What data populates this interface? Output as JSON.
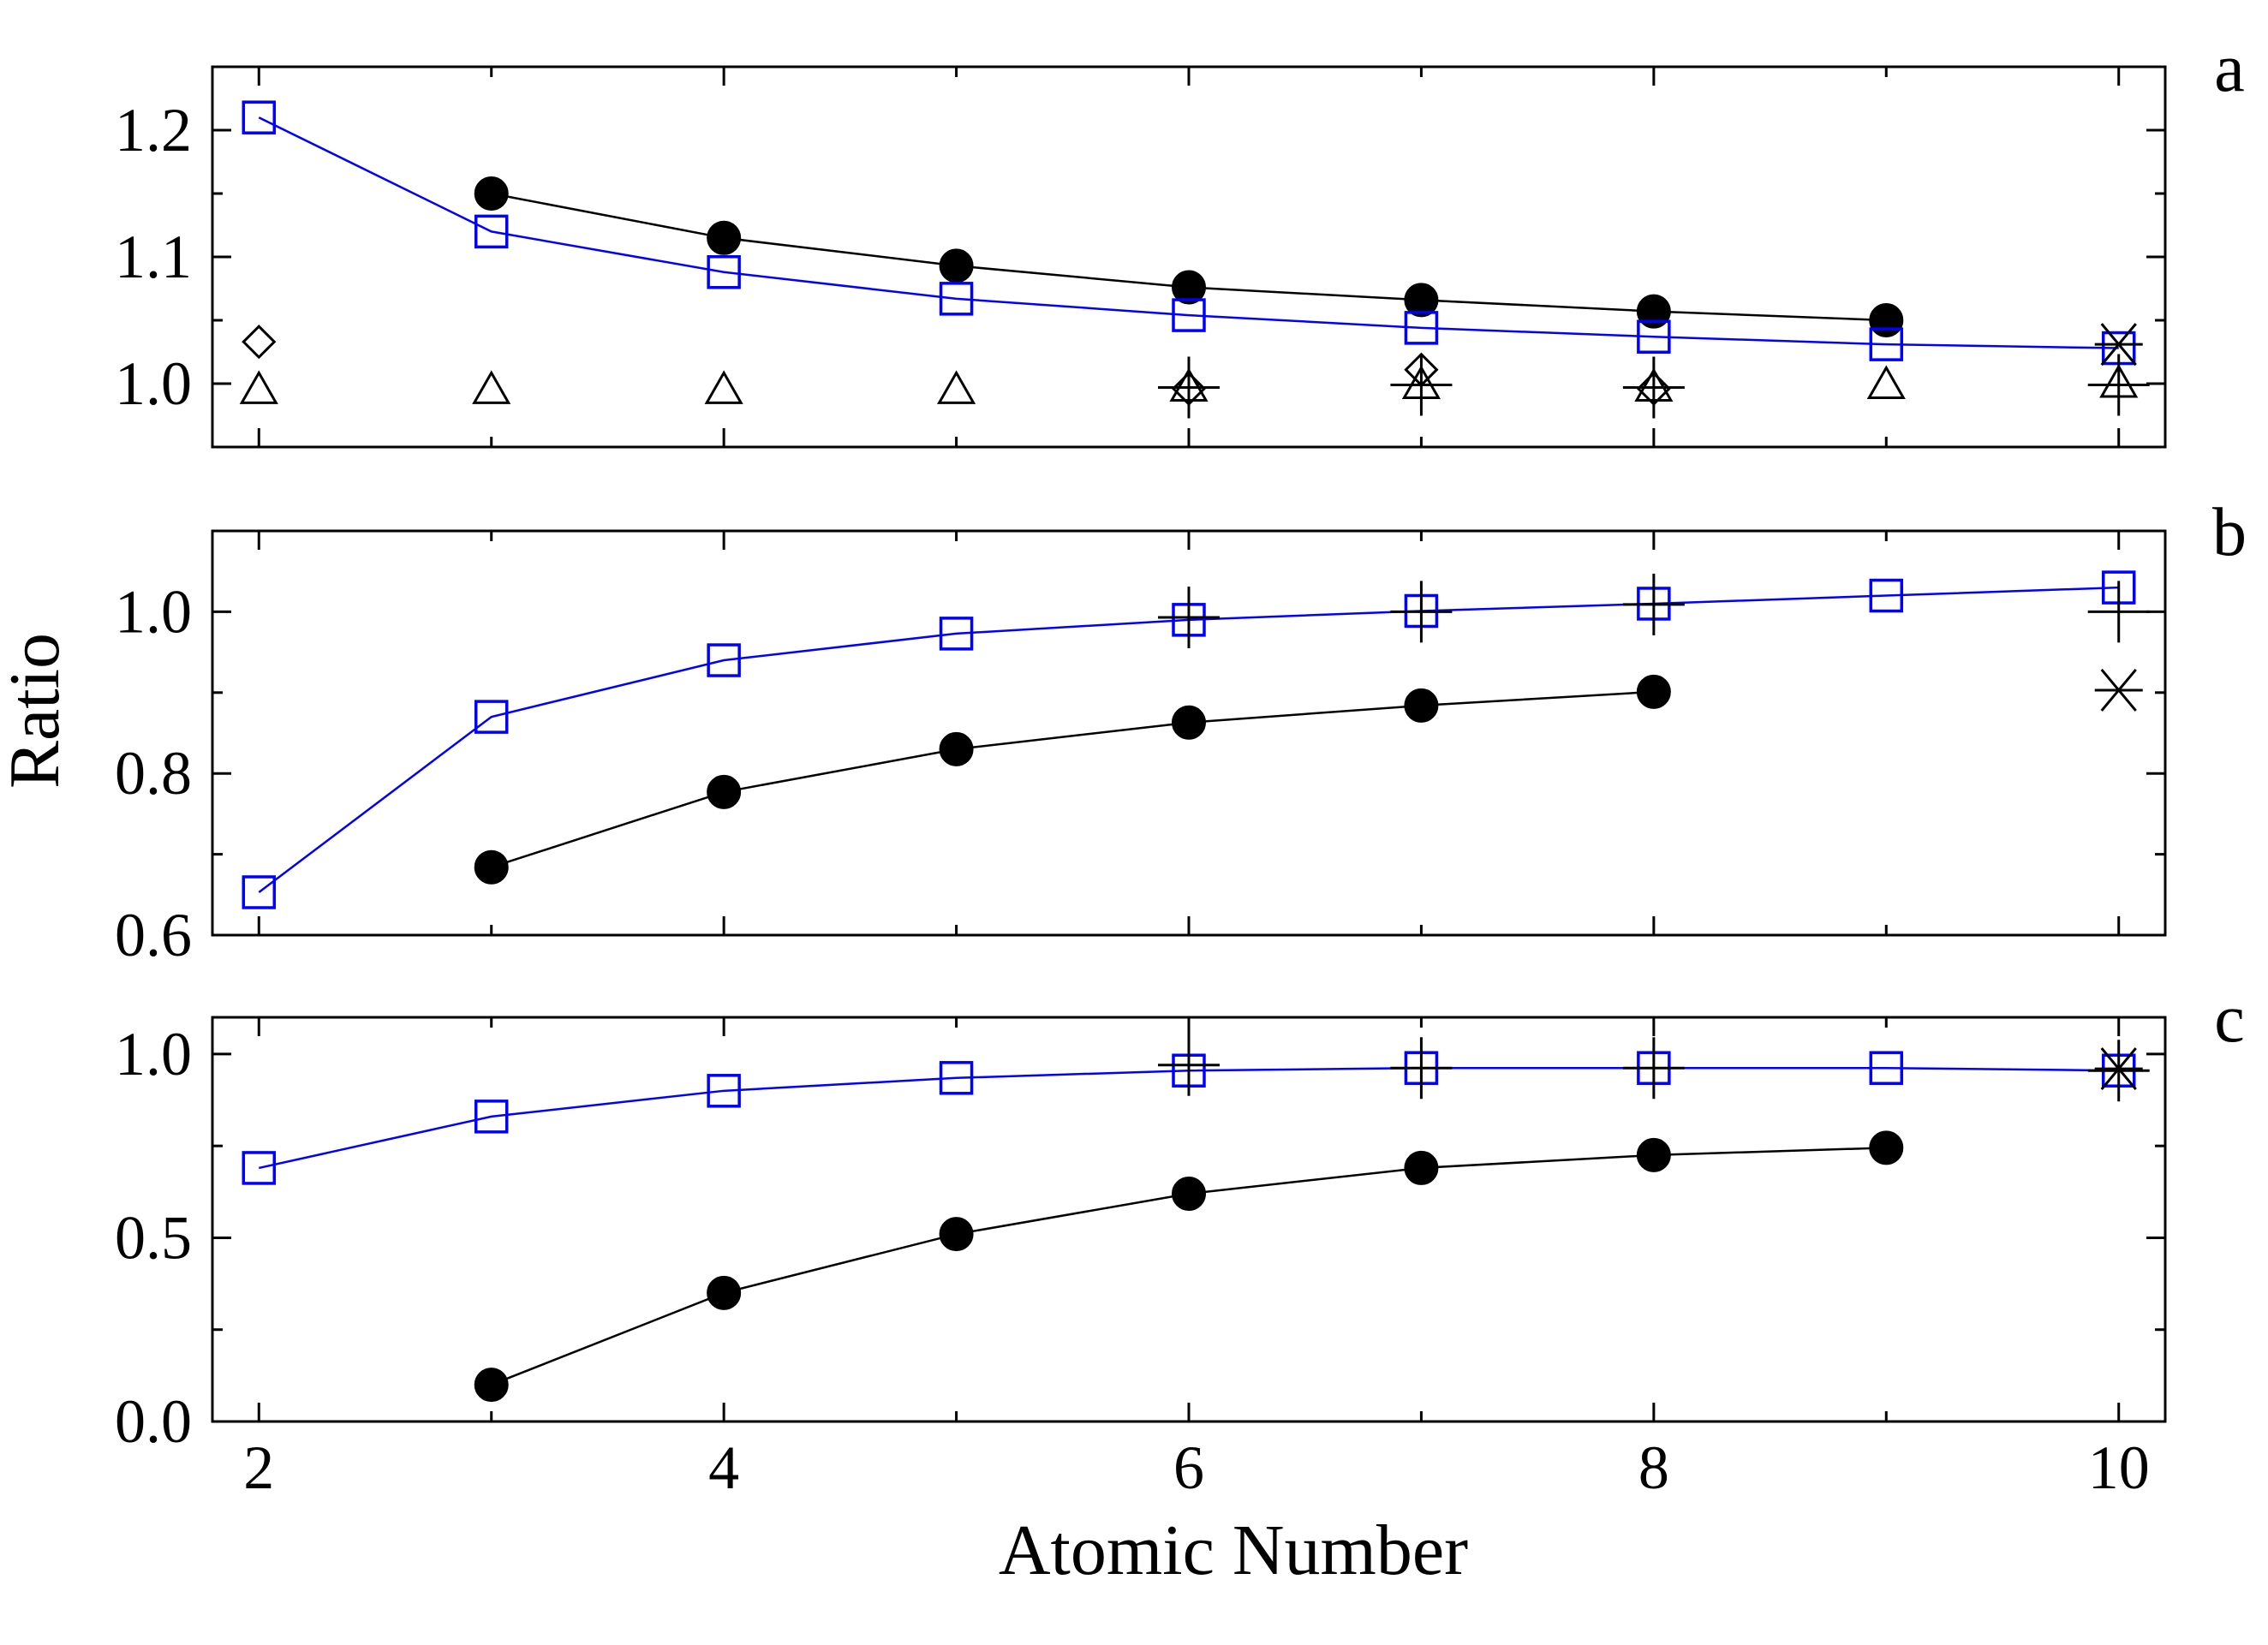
{
  "chart_data": {
    "type": "scatter",
    "xlabel": "Atomic Number",
    "ylabel": "Ratio",
    "xlim": [
      1.8,
      10.2
    ],
    "xticks": [
      2,
      4,
      6,
      8,
      10
    ],
    "xtick_labels": [
      "2",
      "4",
      "6",
      "8",
      "10"
    ],
    "colors": {
      "blue": "#0000ff",
      "black": "#000000"
    },
    "panels": [
      {
        "label": "a",
        "ylim": [
          0.95,
          1.25
        ],
        "yticks": [
          1.0,
          1.1,
          1.2
        ],
        "ytick_labels": [
          "1.0",
          "1.1",
          "1.2"
        ],
        "series": [
          {
            "marker": "filled-circle",
            "color": "#000000",
            "line": true,
            "x": [
              3,
              4,
              5,
              6,
              7,
              8,
              9
            ],
            "y": [
              1.15,
              1.115,
              1.093,
              1.076,
              1.066,
              1.057,
              1.05
            ]
          },
          {
            "marker": "open-square",
            "color": "#0000ff",
            "line": true,
            "x": [
              2,
              3,
              4,
              5,
              6,
              7,
              8,
              9,
              10
            ],
            "y": [
              1.21,
              1.12,
              1.088,
              1.067,
              1.054,
              1.044,
              1.037,
              1.031,
              1.028
            ]
          },
          {
            "marker": "open-diamond",
            "color": "#000000",
            "line": false,
            "x": [
              2,
              6,
              7,
              8
            ],
            "y": [
              1.033,
              0.996,
              1.011,
              0.996
            ]
          },
          {
            "marker": "open-triangle",
            "color": "#000000",
            "line": false,
            "x": [
              2,
              3,
              4,
              5,
              6,
              7,
              8,
              9,
              10
            ],
            "y": [
              0.995,
              0.995,
              0.995,
              0.995,
              0.997,
              0.999,
              0.997,
              0.999,
              1.0
            ]
          },
          {
            "marker": "plus",
            "color": "#000000",
            "line": false,
            "x": [
              6,
              7,
              8,
              10
            ],
            "y": [
              0.997,
              0.999,
              0.997,
              0.999
            ]
          },
          {
            "marker": "star",
            "color": "#000000",
            "line": false,
            "x": [
              10
            ],
            "y": [
              1.031
            ]
          }
        ]
      },
      {
        "label": "b",
        "ylim": [
          0.6,
          1.1
        ],
        "yticks": [
          0.6,
          0.8,
          1.0
        ],
        "ytick_labels": [
          "0.6",
          "0.8",
          "1.0"
        ],
        "series": [
          {
            "marker": "filled-circle",
            "color": "#000000",
            "line": true,
            "x": [
              3,
              4,
              5,
              6,
              7,
              8
            ],
            "y": [
              0.684,
              0.777,
              0.83,
              0.863,
              0.884,
              0.901
            ]
          },
          {
            "marker": "open-square",
            "color": "#0000ff",
            "line": true,
            "x": [
              2,
              3,
              4,
              5,
              6,
              7,
              8,
              9,
              10
            ],
            "y": [
              0.653,
              0.87,
              0.94,
              0.973,
              0.99,
              1.001,
              1.01,
              1.02,
              1.03
            ]
          },
          {
            "marker": "plus",
            "color": "#000000",
            "line": false,
            "x": [
              6,
              7,
              8,
              10
            ],
            "y": [
              0.993,
              1.0,
              1.009,
              1.0
            ]
          },
          {
            "marker": "star",
            "color": "#000000",
            "line": false,
            "x": [
              10
            ],
            "y": [
              0.903
            ]
          }
        ]
      },
      {
        "label": "c",
        "ylim": [
          0.0,
          1.1
        ],
        "yticks": [
          0.0,
          0.5,
          1.0
        ],
        "ytick_labels": [
          "0.0",
          "0.5",
          "1.0"
        ],
        "series": [
          {
            "marker": "filled-circle",
            "color": "#000000",
            "line": true,
            "x": [
              3,
              4,
              5,
              6,
              7,
              8,
              9
            ],
            "y": [
              0.1,
              0.35,
              0.51,
              0.62,
              0.69,
              0.725,
              0.745
            ]
          },
          {
            "marker": "open-square",
            "color": "#0000ff",
            "line": true,
            "x": [
              2,
              3,
              4,
              5,
              6,
              7,
              8,
              9,
              10
            ],
            "y": [
              0.69,
              0.83,
              0.9,
              0.935,
              0.955,
              0.962,
              0.962,
              0.962,
              0.955
            ]
          },
          {
            "marker": "plus",
            "color": "#000000",
            "line": false,
            "x": [
              6,
              7,
              8,
              10
            ],
            "y": [
              0.97,
              0.962,
              0.962,
              0.955
            ]
          },
          {
            "marker": "star",
            "color": "#000000",
            "line": false,
            "x": [
              10
            ],
            "y": [
              0.96
            ]
          }
        ]
      }
    ]
  }
}
